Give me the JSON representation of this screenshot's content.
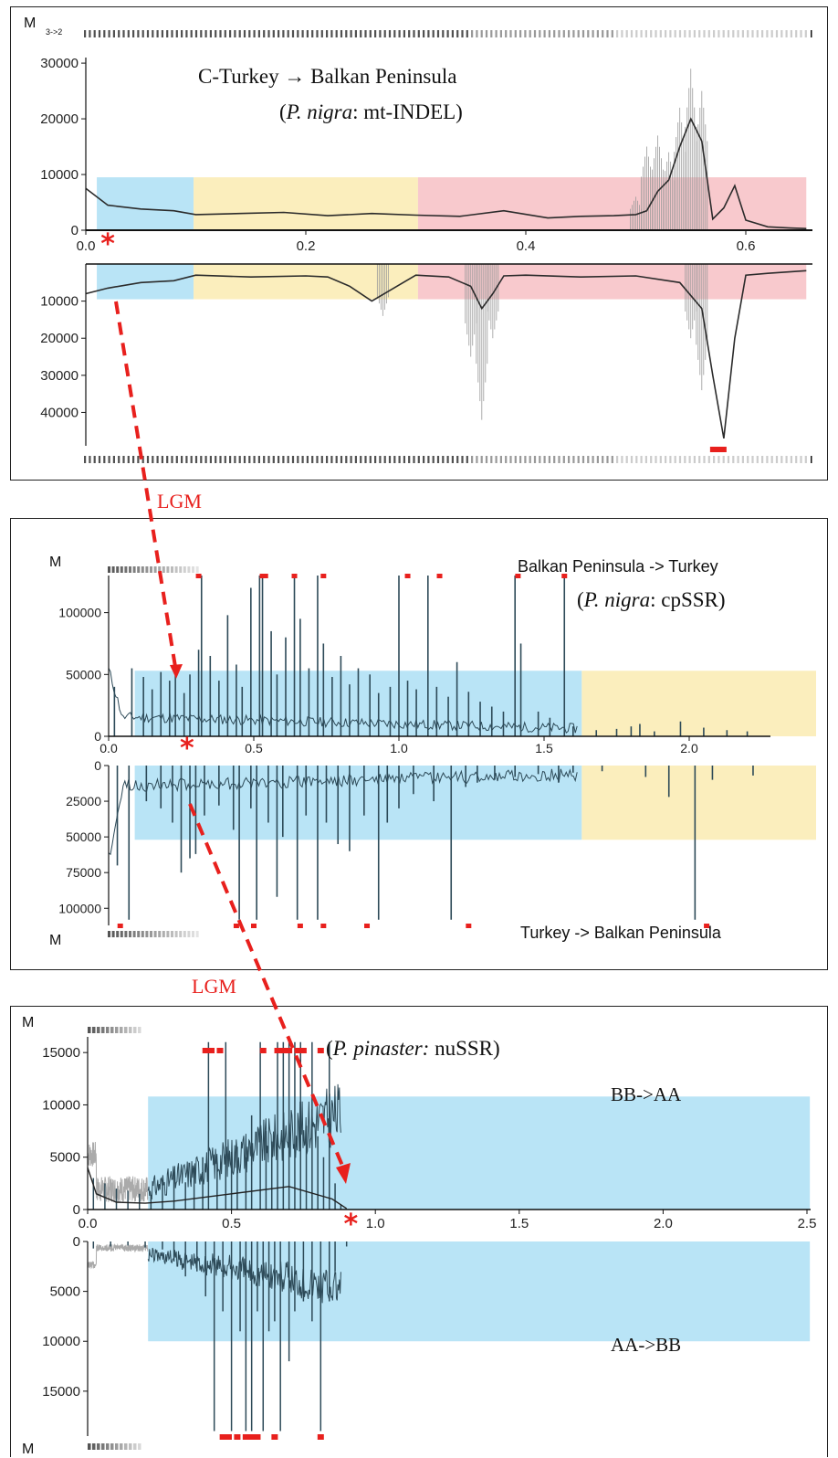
{
  "figure": {
    "connectors": [
      {
        "label": "LGM",
        "color": "#e8201d"
      },
      {
        "label": "LGM",
        "color": "#e8201d"
      }
    ],
    "colors": {
      "blue": "#b9e4f6",
      "yellow": "#fbeebd",
      "red": "#f8c9cd",
      "marker": "#e8201d",
      "line": "#2b2b2b",
      "teal": "#2d4a58"
    }
  },
  "chart_data": [
    {
      "type": "line",
      "m_label": "M",
      "rate_label": "3->2",
      "title": "C-Turkey → Balkan Peninsula",
      "subtitle_taxon": "P. nigra",
      "subtitle_marker": ": mt-INDEL",
      "xlim": [
        0,
        0.655
      ],
      "x_ticks": [
        0.0,
        0.2,
        0.4,
        0.6
      ],
      "x_tick_labels": [
        "0.0",
        "0.2",
        "0.4",
        "0.6"
      ],
      "upper_ylim": [
        0,
        31000
      ],
      "upper_y_ticks": [
        0,
        10000,
        20000,
        30000
      ],
      "upper_y_tick_labels": [
        "0",
        "10000",
        "20000",
        "30000"
      ],
      "lower_ylim": [
        0,
        49000
      ],
      "lower_y_ticks": [
        10000,
        20000,
        30000,
        40000
      ],
      "lower_y_tick_labels": [
        "10000",
        "20000",
        "30000",
        "40000"
      ],
      "regions": [
        {
          "color": "blue",
          "x": [
            0.01,
            0.098
          ],
          "upper": 9500,
          "lower": 9500
        },
        {
          "color": "yellow",
          "x": [
            0.098,
            0.302
          ],
          "upper": 9500,
          "lower": 9500
        },
        {
          "color": "red",
          "x": [
            0.302,
            0.655
          ],
          "upper": 9500,
          "lower": 9500
        }
      ],
      "asterisk_x": 0.02,
      "upper_series": {
        "x": [
          0.0,
          0.02,
          0.05,
          0.08,
          0.1,
          0.14,
          0.18,
          0.22,
          0.26,
          0.3,
          0.34,
          0.38,
          0.42,
          0.45,
          0.48,
          0.5,
          0.51,
          0.52,
          0.53,
          0.54,
          0.55,
          0.56,
          0.57,
          0.58,
          0.59,
          0.6,
          0.62,
          0.64,
          0.655
        ],
        "y": [
          7500,
          4500,
          3800,
          3500,
          2800,
          3000,
          3200,
          2600,
          3000,
          2700,
          2500,
          3500,
          2200,
          2500,
          2600,
          2800,
          3500,
          7000,
          9000,
          15000,
          20000,
          16000,
          2000,
          4000,
          8000,
          1800,
          600,
          400,
          300
        ],
        "spread_x": [
          0.5,
          0.51,
          0.52,
          0.53,
          0.54,
          0.55,
          0.56
        ],
        "spread_y": [
          6000,
          15000,
          17000,
          14000,
          22000,
          29000,
          25000
        ]
      },
      "lower_series": {
        "x": [
          0.0,
          0.02,
          0.05,
          0.08,
          0.1,
          0.15,
          0.2,
          0.22,
          0.24,
          0.26,
          0.3,
          0.33,
          0.35,
          0.36,
          0.37,
          0.38,
          0.4,
          0.45,
          0.5,
          0.54,
          0.56,
          0.57,
          0.58,
          0.59,
          0.6,
          0.62,
          0.655
        ],
        "y": [
          8000,
          6500,
          5000,
          4500,
          3000,
          3500,
          3200,
          3500,
          6000,
          10000,
          3000,
          3500,
          6000,
          12000,
          8000,
          3200,
          3000,
          3500,
          3200,
          5000,
          12000,
          30000,
          47000,
          20000,
          3000,
          2500,
          1800
        ],
        "spread_x": [
          0.27,
          0.35,
          0.36,
          0.37,
          0.55,
          0.56
        ],
        "spread_y": [
          14000,
          25000,
          42000,
          20000,
          20000,
          34000
        ]
      },
      "max_markers_lower_x": [
        0.575
      ]
    },
    {
      "type": "bar",
      "m_label": "M",
      "title_upper": "Balkan Peninsula -> Turkey",
      "subtitle_taxon": "P. nigra",
      "subtitle_marker": ": cpSSR",
      "title_lower": "Turkey -> Balkan Peninsula",
      "xlim": [
        0,
        2.3
      ],
      "x_ticks": [
        0.0,
        0.5,
        1.0,
        1.5,
        2.0
      ],
      "x_tick_labels": [
        "0.0",
        "0.5",
        "1.0",
        "1.5",
        "2.0"
      ],
      "upper_ylim": [
        0,
        130000
      ],
      "upper_y_ticks": [
        0,
        50000,
        100000
      ],
      "upper_y_tick_labels": [
        "0",
        "50000",
        "100000"
      ],
      "lower_ylim": [
        0,
        112000
      ],
      "lower_y_ticks": [
        0,
        25000,
        50000,
        75000,
        100000
      ],
      "lower_y_tick_labels": [
        "0",
        "25000",
        "50000",
        "75000",
        "100000"
      ],
      "regions": [
        {
          "color": "blue",
          "x": [
            0.09,
            1.63
          ],
          "upper": 53000,
          "lower": 52000
        },
        {
          "color": "yellow",
          "x": [
            1.63,
            2.44
          ],
          "upper": 53000,
          "lower": 52000
        }
      ],
      "asterisk_x": 0.27,
      "upper_spikes_x": [
        0.02,
        0.08,
        0.12,
        0.15,
        0.18,
        0.21,
        0.23,
        0.26,
        0.28,
        0.31,
        0.32,
        0.35,
        0.38,
        0.41,
        0.44,
        0.46,
        0.49,
        0.52,
        0.53,
        0.56,
        0.58,
        0.61,
        0.64,
        0.66,
        0.69,
        0.72,
        0.74,
        0.77,
        0.8,
        0.83,
        0.86,
        0.9,
        0.93,
        0.97,
        1.0,
        1.03,
        1.06,
        1.1,
        1.13,
        1.17,
        1.2,
        1.24,
        1.28,
        1.32,
        1.36,
        1.4,
        1.42,
        1.48,
        1.52,
        1.57,
        1.6,
        1.68,
        1.75,
        1.8,
        1.83,
        1.88,
        1.97,
        2.05,
        2.13,
        2.2
      ],
      "upper_spikes_y": [
        40000,
        55000,
        48000,
        38000,
        52000,
        45000,
        60000,
        35000,
        50000,
        70000,
        130000,
        65000,
        45000,
        98000,
        58000,
        40000,
        120000,
        130000,
        130000,
        85000,
        50000,
        80000,
        130000,
        95000,
        55000,
        130000,
        75000,
        48000,
        65000,
        42000,
        55000,
        50000,
        35000,
        40000,
        130000,
        45000,
        38000,
        130000,
        40000,
        32000,
        60000,
        36000,
        28000,
        24000,
        20000,
        130000,
        75000,
        20000,
        15000,
        130000,
        8000,
        5000,
        6000,
        8000,
        10000,
        4000,
        12000,
        7000,
        5000,
        4000
      ],
      "upper_max_markers_x": [
        0.31,
        0.53,
        0.54,
        0.64,
        0.74,
        1.03,
        1.14,
        1.41,
        1.57
      ],
      "lower_spikes_x": [
        0.03,
        0.07,
        0.13,
        0.18,
        0.22,
        0.25,
        0.28,
        0.3,
        0.33,
        0.38,
        0.43,
        0.45,
        0.49,
        0.51,
        0.55,
        0.58,
        0.6,
        0.65,
        0.68,
        0.72,
        0.75,
        0.79,
        0.83,
        0.88,
        0.93,
        0.96,
        1.0,
        1.05,
        1.12,
        1.18,
        1.23,
        1.27,
        1.33,
        1.4,
        1.48,
        1.55,
        1.6,
        1.7,
        1.85,
        1.93,
        2.02,
        2.08,
        2.22
      ],
      "lower_spikes_y": [
        70000,
        108000,
        25000,
        30000,
        40000,
        75000,
        65000,
        62000,
        35000,
        28000,
        45000,
        108000,
        30000,
        108000,
        40000,
        92000,
        50000,
        108000,
        35000,
        108000,
        40000,
        55000,
        60000,
        35000,
        108000,
        40000,
        30000,
        20000,
        25000,
        108000,
        15000,
        12000,
        10000,
        8000,
        6000,
        12000,
        5000,
        4000,
        8000,
        22000,
        108000,
        10000,
        7000
      ],
      "lower_max_markers_x": [
        0.04,
        0.44,
        0.5,
        0.66,
        0.74,
        0.89,
        1.24,
        2.06
      ]
    },
    {
      "type": "bar",
      "m_label": "M",
      "subtitle_taxon": "P. pinaster:",
      "subtitle_marker": " nuSSR",
      "label_upper": "BB->AA",
      "label_lower": "AA->BB",
      "xlim": [
        0,
        2.55
      ],
      "x_ticks": [
        0.0,
        0.5,
        1.0,
        1.5,
        2.0,
        2.5
      ],
      "x_tick_labels": [
        "0.0",
        "0.5",
        "1.0",
        "1.5",
        "2.0",
        "2.5"
      ],
      "upper_ylim": [
        0,
        16500
      ],
      "upper_y_ticks": [
        0,
        5000,
        10000,
        15000
      ],
      "upper_y_tick_labels": [
        "0",
        "5000",
        "10000",
        "15000"
      ],
      "lower_ylim": [
        0,
        19500
      ],
      "lower_y_ticks": [
        0,
        5000,
        10000,
        15000
      ],
      "lower_y_tick_labels": [
        "0",
        "5000",
        "10000",
        "15000"
      ],
      "regions": [
        {
          "color": "blue",
          "x": [
            0.21,
            2.51
          ],
          "upper": 10800,
          "lower": 10000
        }
      ],
      "asterisk_x": 0.915,
      "upper_spikes_x": [
        0.02,
        0.06,
        0.1,
        0.14,
        0.18,
        0.22,
        0.26,
        0.3,
        0.34,
        0.37,
        0.4,
        0.42,
        0.45,
        0.48,
        0.5,
        0.52,
        0.55,
        0.57,
        0.6,
        0.62,
        0.64,
        0.66,
        0.68,
        0.7,
        0.72,
        0.74,
        0.76,
        0.78,
        0.8,
        0.82,
        0.84,
        0.86,
        0.88
      ],
      "upper_spikes_y": [
        3000,
        2500,
        2000,
        1800,
        1500,
        1400,
        2500,
        3000,
        2600,
        4000,
        5000,
        16000,
        4500,
        16000,
        5500,
        6000,
        5000,
        9000,
        16000,
        7500,
        6500,
        16000,
        16000,
        16000,
        16000,
        16000,
        8000,
        16000,
        7000,
        5000,
        16000,
        2500,
        500
      ],
      "upper_max_markers_x": [
        0.41,
        0.43,
        0.46,
        0.61,
        0.66,
        0.68,
        0.7,
        0.73,
        0.75,
        0.81
      ],
      "lower_spikes_x": [
        0.02,
        0.08,
        0.14,
        0.2,
        0.26,
        0.3,
        0.34,
        0.38,
        0.41,
        0.44,
        0.47,
        0.5,
        0.53,
        0.55,
        0.57,
        0.59,
        0.61,
        0.63,
        0.65,
        0.67,
        0.7,
        0.72,
        0.75,
        0.78,
        0.81,
        0.84,
        0.86,
        0.9
      ],
      "lower_spikes_y": [
        700,
        500,
        400,
        600,
        800,
        2000,
        3500,
        3000,
        5500,
        19000,
        7000,
        19000,
        9000,
        19000,
        19000,
        7000,
        19000,
        9000,
        8000,
        19000,
        12000,
        7000,
        6000,
        8000,
        19000,
        6000,
        3000,
        500
      ],
      "lower_max_markers_x": [
        0.47,
        0.49,
        0.52,
        0.55,
        0.57,
        0.59,
        0.65,
        0.81
      ]
    }
  ]
}
